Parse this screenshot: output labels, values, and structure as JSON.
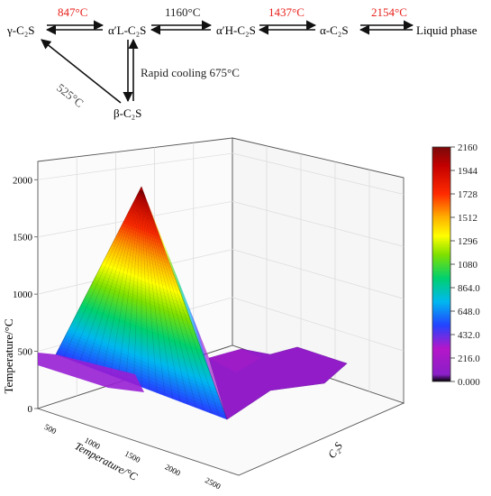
{
  "scheme": {
    "phases": {
      "gamma": "γ-C₂S",
      "alpha_l": "α′L-C₂S",
      "alpha_h": "α′H-C₂S",
      "alpha": "α-C₂S",
      "liquid": "Liquid phase",
      "beta": "β-C₂S"
    },
    "transitions": {
      "t1": {
        "label": "847°C",
        "color": "#e8201a"
      },
      "t2": {
        "label": "1160°C",
        "color": "#222222"
      },
      "t3": {
        "label": "1437°C",
        "color": "#e8201a"
      },
      "t4": {
        "label": "2154°C",
        "color": "#e8201a"
      },
      "t5": {
        "label": "525°C",
        "color": "#444444"
      },
      "t6": {
        "label": "Rapid cooling 675°C",
        "color": "#222222"
      }
    }
  },
  "chart_data": {
    "type": "surface3d",
    "z_axis": {
      "label": "Temperature/°C",
      "ticks": [
        0,
        500,
        1000,
        1500,
        2000
      ]
    },
    "x_axis": {
      "label": "Temperature/°C",
      "ticks": [
        "500",
        "1000",
        "1500",
        "2000",
        "2500"
      ]
    },
    "y_axis": {
      "label": "C₂S"
    },
    "colorbar": {
      "min": 0,
      "max": 2160,
      "ticks": [
        "2160",
        "1944",
        "1728",
        "1512",
        "1296",
        "1080",
        "864.0",
        "648.0",
        "432.0",
        "216.0",
        "0.000"
      ]
    },
    "peak_value": 2050,
    "base_values": [
      500,
      100,
      0
    ]
  }
}
